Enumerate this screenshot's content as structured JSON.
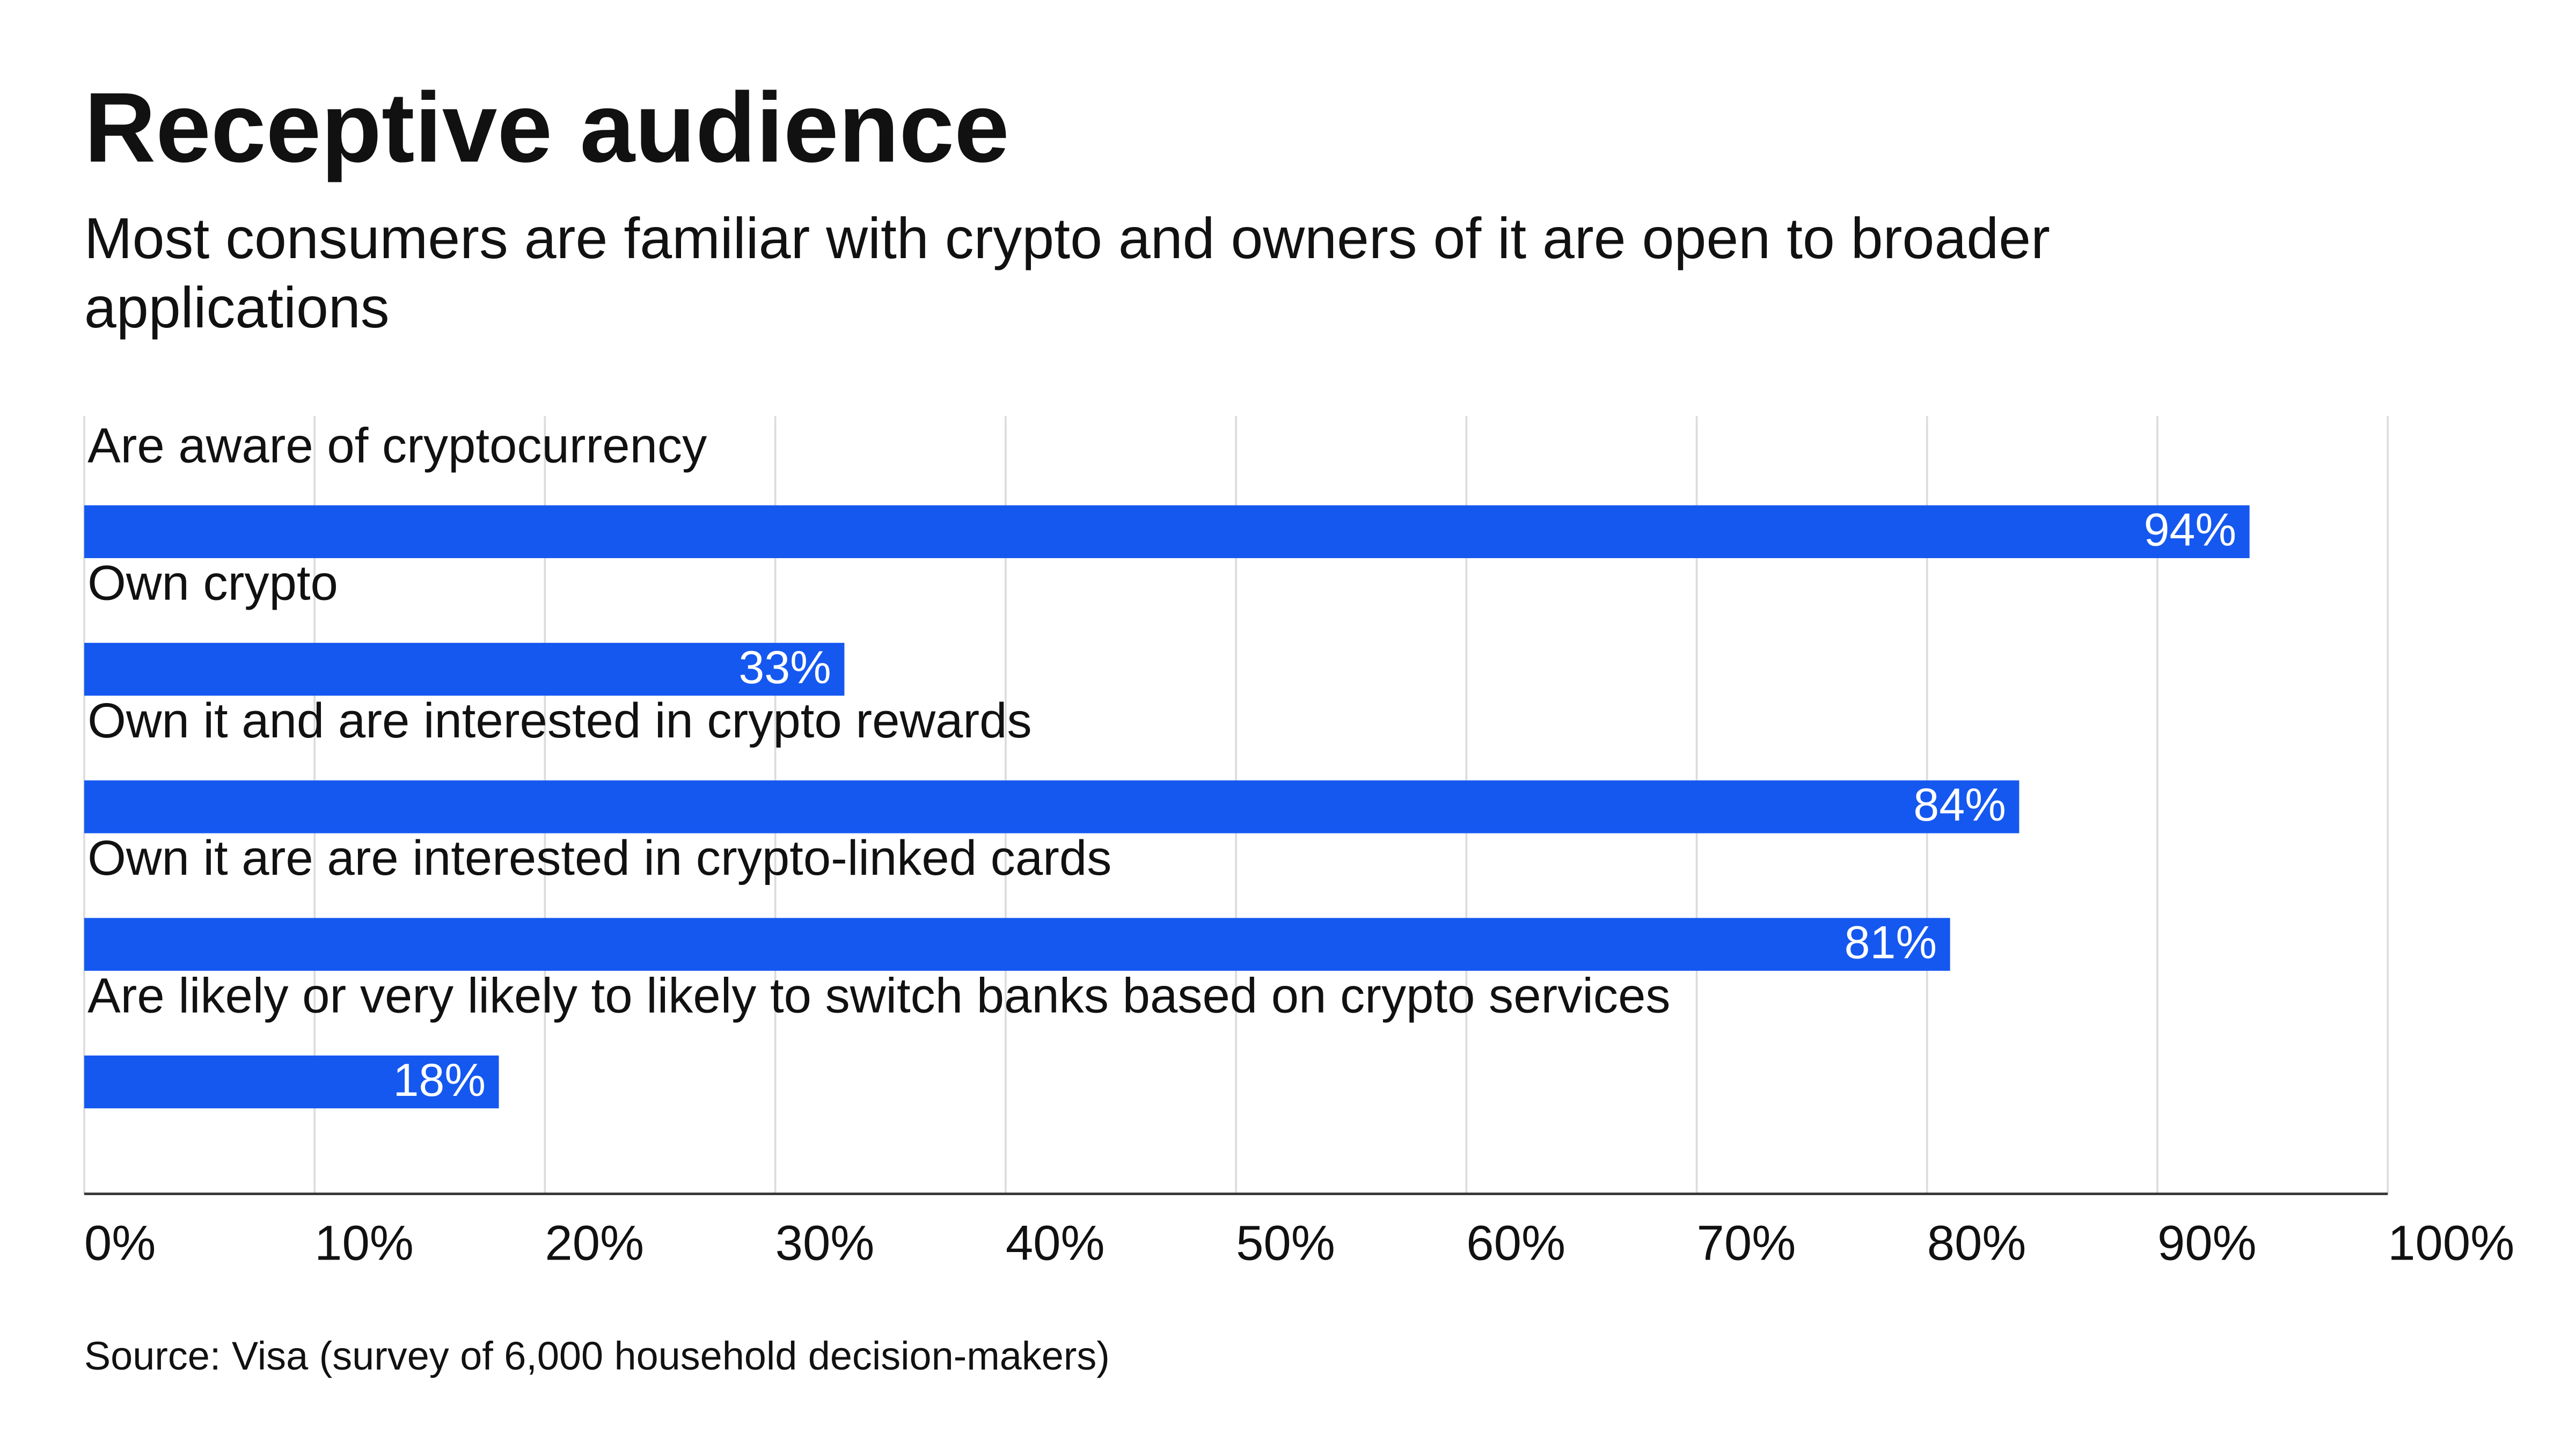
{
  "chart_data": {
    "type": "bar",
    "orientation": "horizontal",
    "title": "Receptive audience",
    "subtitle": [
      "Most consumers are familiar with crypto and owners of it are open to broader",
      "applications"
    ],
    "categories": [
      "Are aware of cryptocurrency",
      "Own crypto",
      "Own it and are interested in crypto rewards",
      "Own it are are interested in crypto-linked cards",
      "Are likely or very likely to likely to switch banks based on crypto services"
    ],
    "values": [
      94,
      33,
      84,
      81,
      18
    ],
    "value_labels": [
      "94%",
      "33%",
      "84%",
      "81%",
      "18%"
    ],
    "color": "#1558f0",
    "xlim": [
      0,
      100
    ],
    "xticks": [
      {
        "value": 0,
        "label": "0%"
      },
      {
        "value": 10,
        "label": "10%"
      },
      {
        "value": 20,
        "label": "20%"
      },
      {
        "value": 30,
        "label": "30%"
      },
      {
        "value": 40,
        "label": "40%"
      },
      {
        "value": 50,
        "label": "50%"
      },
      {
        "value": 60,
        "label": "60%"
      },
      {
        "value": 70,
        "label": "70%"
      },
      {
        "value": 80,
        "label": "80%"
      },
      {
        "value": 90,
        "label": "90%"
      },
      {
        "value": 100,
        "label": "100%"
      }
    ],
    "grid": true,
    "source": "Source: Visa (survey of 6,000 household decision-makers)"
  }
}
